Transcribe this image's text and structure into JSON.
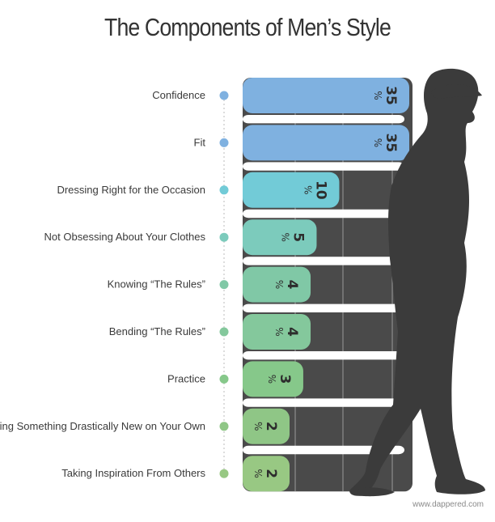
{
  "chart_data": {
    "type": "bar",
    "title": "The Components of Men’s Style",
    "categories": [
      "Confidence",
      "Fit",
      "Dressing Right for the Occasion",
      "Not Obsessing About Your Clothes",
      "Knowing “The Rules”",
      "Bending “The Rules”",
      "Practice",
      "Trying Something Drastically New on Your Own",
      "Taking Inspiration From Others"
    ],
    "values": [
      35,
      35,
      10,
      5,
      4,
      4,
      3,
      2,
      2
    ],
    "value_suffix": "%",
    "colors": [
      "#7fb1e0",
      "#7fb1e0",
      "#72cbd7",
      "#7ccbbc",
      "#80c8a6",
      "#84c89c",
      "#86c88a",
      "#8fc686",
      "#98c883"
    ],
    "panel_color": "#4a4a4a",
    "silhouette_color": "#3b3b3b"
  },
  "credit": "www.dappered.com"
}
